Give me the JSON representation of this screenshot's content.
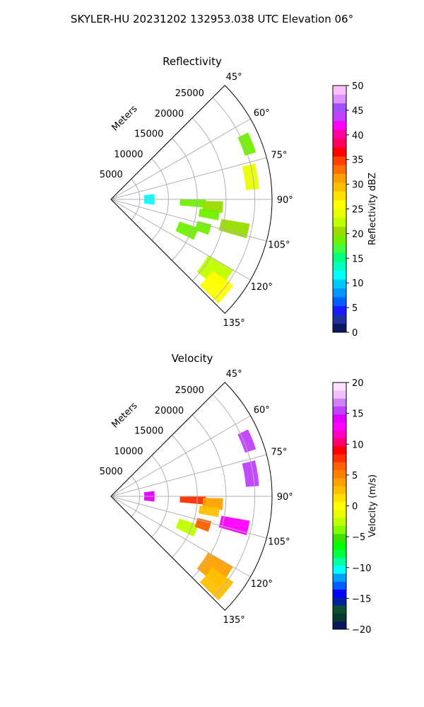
{
  "figure_title": "SKYLER-HU  20231202  132953.038 UTC Elevation 06°",
  "colors": {
    "grid": "#b0b0b0",
    "outline": "#000000"
  },
  "chart_data": [
    {
      "type": "heatmap",
      "projection": "polar-sector",
      "title": "Reflectivity",
      "range_axis_label": "Meters",
      "range_ticks": [
        5000,
        10000,
        15000,
        20000,
        25000
      ],
      "range_tick_labels": [
        "5000",
        "10000",
        "15000",
        "20000",
        "25000"
      ],
      "range_max": 28000,
      "azimuth_range_deg": [
        45,
        135
      ],
      "azimuth_ticks": [
        45,
        60,
        75,
        90,
        105,
        120,
        135
      ],
      "azimuth_tick_labels": [
        "45°",
        "60°",
        "75°",
        "90°",
        "105°",
        "120°",
        "135°"
      ],
      "grid": true,
      "colorbar": {
        "label": "Reflectivity dBZ",
        "range": [
          0,
          50
        ],
        "ticks": [
          0,
          5,
          10,
          15,
          20,
          25,
          30,
          35,
          40,
          45,
          50
        ],
        "tick_labels": [
          "0",
          "5",
          "10",
          "15",
          "20",
          "25",
          "30",
          "35",
          "40",
          "45",
          "50"
        ],
        "colors": [
          "#0a1660",
          "#1e2fa0",
          "#1a1aff",
          "#0060ff",
          "#0098ff",
          "#00c8ff",
          "#00ffff",
          "#00ffc0",
          "#00ff80",
          "#40ff40",
          "#70f000",
          "#9adc00",
          "#c0ff00",
          "#e8ff00",
          "#ffff00",
          "#ffe000",
          "#ffc000",
          "#ffa000",
          "#ff7000",
          "#ff4000",
          "#ff0000",
          "#ff0060",
          "#ff00a0",
          "#ff00ff",
          "#c040ff",
          "#a050ff",
          "#e090ff",
          "#ffc0ff"
        ]
      },
      "echoes": [
        {
          "az": [
            83,
            97
          ],
          "r": [
            5800,
            7600
          ],
          "value": 11
        },
        {
          "az": [
            90,
            95
          ],
          "r": [
            12000,
            16500
          ],
          "value": 19
        },
        {
          "az": [
            91,
            97
          ],
          "r": [
            16000,
            19500
          ],
          "value": 21
        },
        {
          "az": [
            96,
            101
          ],
          "r": [
            15500,
            19000
          ],
          "value": 19
        },
        {
          "az": [
            100,
            106
          ],
          "r": [
            19500,
            24500
          ],
          "value": 20
        },
        {
          "az": [
            108,
            116
          ],
          "r": [
            12500,
            16000
          ],
          "value": 19
        },
        {
          "az": [
            104,
            110
          ],
          "r": [
            15500,
            18000
          ],
          "value": 18
        },
        {
          "az": [
            120,
            130
          ],
          "r": [
            19500,
            24500
          ],
          "value": 22
        },
        {
          "az": [
            125,
            134
          ],
          "r": [
            21500,
            26000
          ],
          "value": 26
        },
        {
          "az": [
            76,
            86
          ],
          "r": [
            23500,
            25800
          ],
          "value": 24
        },
        {
          "az": [
            64,
            72
          ],
          "r": [
            24500,
            26500
          ],
          "value": 18
        }
      ]
    },
    {
      "type": "heatmap",
      "projection": "polar-sector",
      "title": "Velocity",
      "range_axis_label": "Meters",
      "range_ticks": [
        5000,
        10000,
        15000,
        20000,
        25000
      ],
      "range_tick_labels": [
        "5000",
        "10000",
        "15000",
        "20000",
        "25000"
      ],
      "range_max": 28000,
      "azimuth_range_deg": [
        45,
        135
      ],
      "azimuth_ticks": [
        45,
        60,
        75,
        90,
        105,
        120,
        135
      ],
      "azimuth_tick_labels": [
        "45°",
        "60°",
        "75°",
        "90°",
        "105°",
        "120°",
        "135°"
      ],
      "grid": true,
      "colorbar": {
        "label": "Velocity (m/s)",
        "range": [
          -20,
          20
        ],
        "ticks": [
          -20,
          -15,
          -10,
          -5,
          0,
          5,
          10,
          15,
          20
        ],
        "tick_labels": [
          "−20",
          "−15",
          "−10",
          "−5",
          "0",
          "5",
          "10",
          "15",
          "20"
        ],
        "colors": [
          "#0a1660",
          "#063a2a",
          "#0a5030",
          "#0020a0",
          "#0000ff",
          "#0060ff",
          "#00a0ff",
          "#00ffff",
          "#00ffa0",
          "#00ff40",
          "#00ff00",
          "#40e000",
          "#80ff00",
          "#c0ff00",
          "#e8ff00",
          "#ffff00",
          "#ffe000",
          "#ffc000",
          "#ffa000",
          "#ff8000",
          "#ff6000",
          "#ff3000",
          "#ff0000",
          "#ff0070",
          "#ff00c0",
          "#ff00ff",
          "#e000ff",
          "#c040ff",
          "#d080ff",
          "#f0c0ff",
          "#ffe0ff"
        ]
      },
      "echoes": [
        {
          "az": [
            83,
            97
          ],
          "r": [
            5800,
            7600
          ],
          "value": 14
        },
        {
          "az": [
            90,
            95
          ],
          "r": [
            12000,
            16500
          ],
          "value": 8
        },
        {
          "az": [
            91,
            97
          ],
          "r": [
            16000,
            19500
          ],
          "value": 4
        },
        {
          "az": [
            96,
            101
          ],
          "r": [
            15500,
            19000
          ],
          "value": 2
        },
        {
          "az": [
            100,
            106
          ],
          "r": [
            19500,
            24500
          ],
          "value": 13
        },
        {
          "az": [
            108,
            116
          ],
          "r": [
            12500,
            16000
          ],
          "value": -2
        },
        {
          "az": [
            104,
            110
          ],
          "r": [
            15500,
            18000
          ],
          "value": 6
        },
        {
          "az": [
            120,
            130
          ],
          "r": [
            19500,
            24500
          ],
          "value": 4
        },
        {
          "az": [
            125,
            134
          ],
          "r": [
            21500,
            26000
          ],
          "value": 2
        },
        {
          "az": [
            76,
            86
          ],
          "r": [
            23500,
            25800
          ],
          "value": 16
        },
        {
          "az": [
            64,
            72
          ],
          "r": [
            24500,
            26500
          ],
          "value": 15
        }
      ]
    }
  ]
}
